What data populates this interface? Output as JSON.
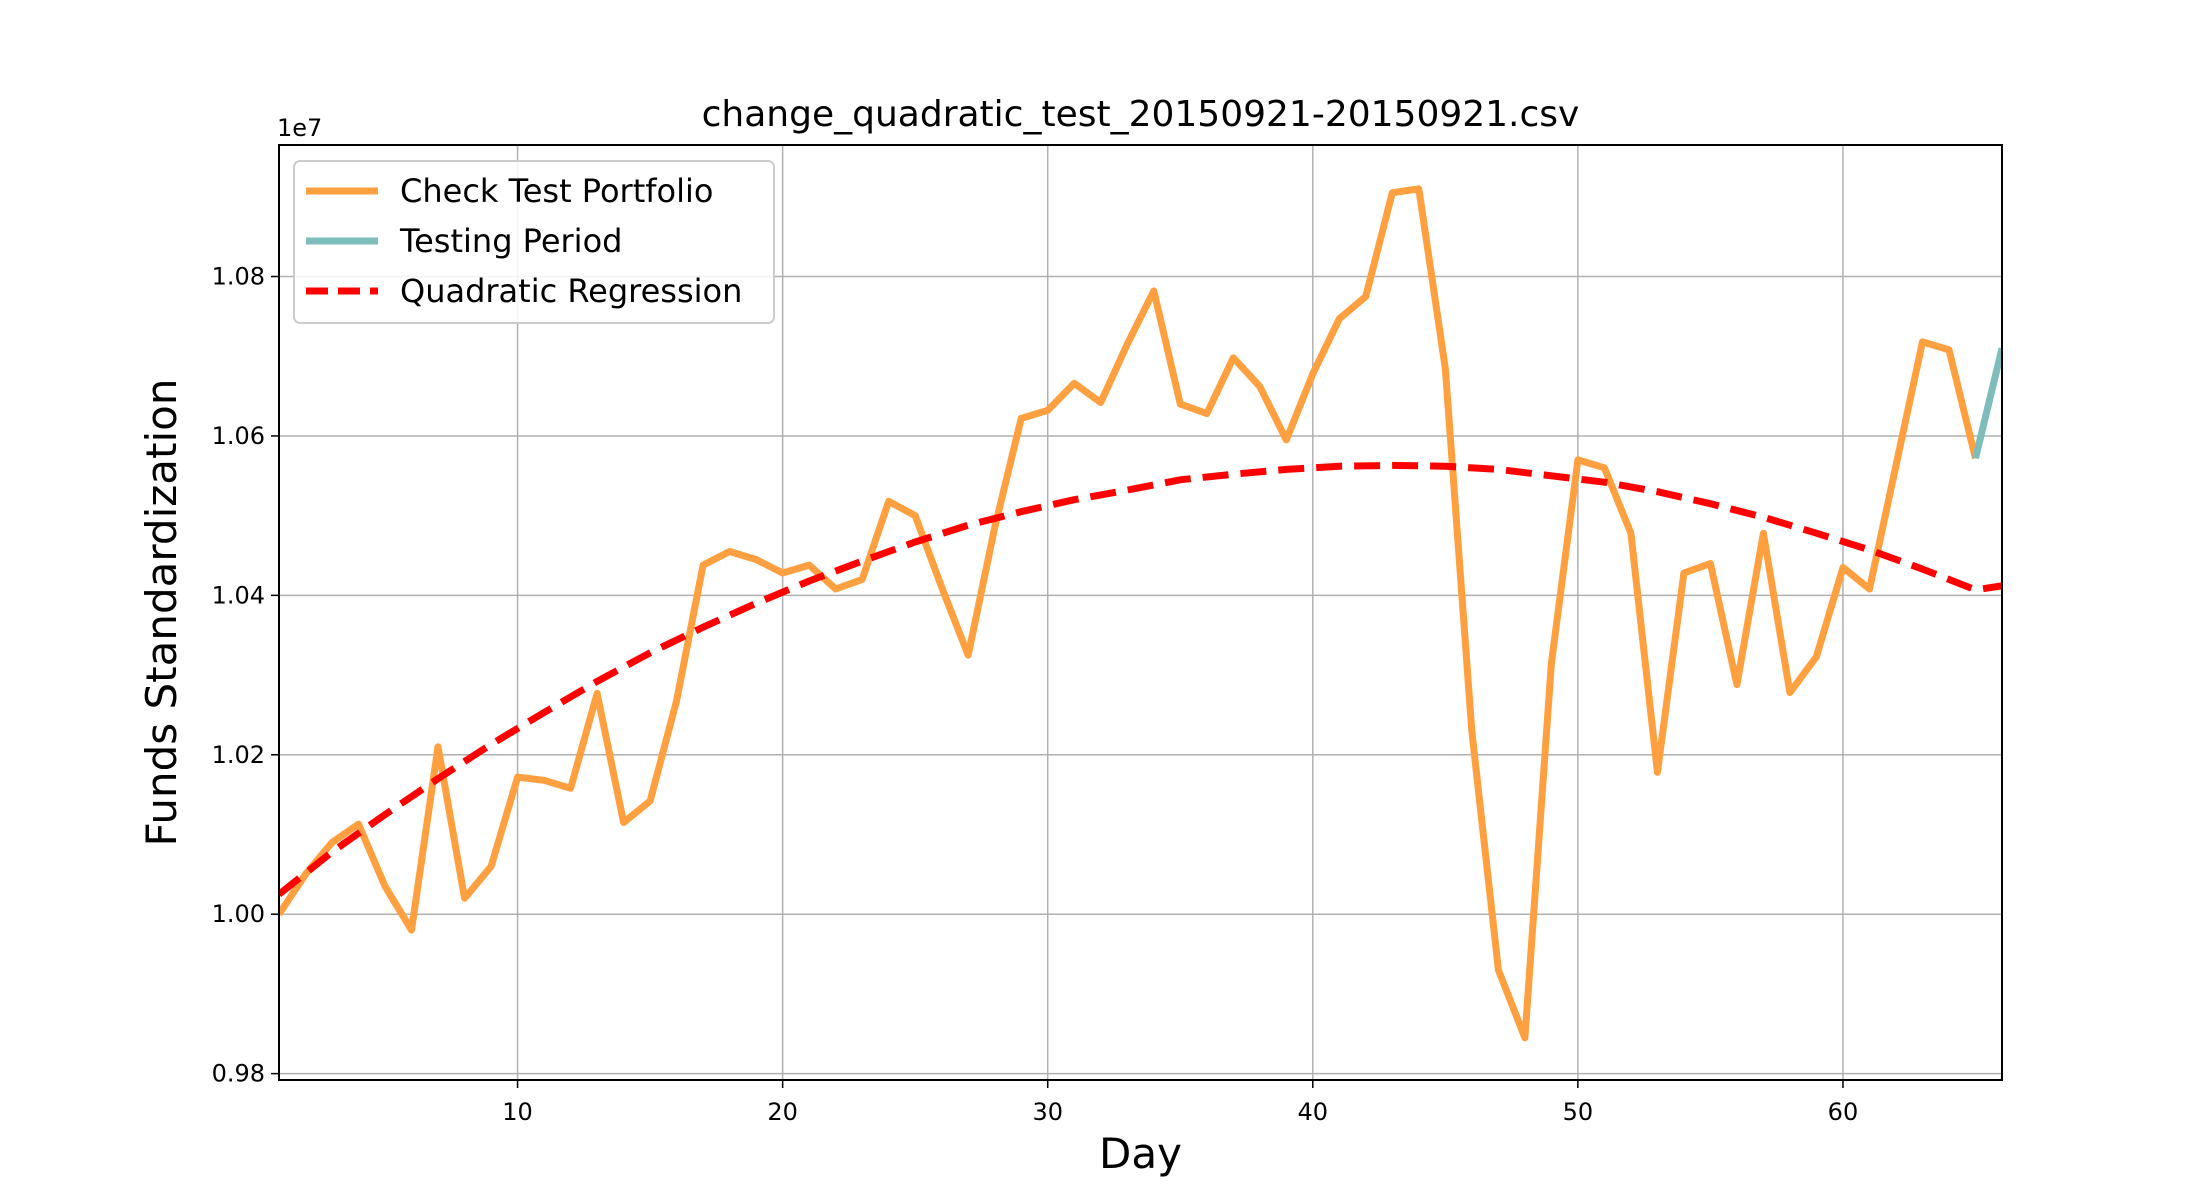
{
  "chart_data": {
    "type": "line",
    "title": "change_quadratic_test_20150921-20150921.csv",
    "xlabel": "Day",
    "ylabel": "Funds Standardization",
    "y_offset_label": "1e7",
    "xlim": [
      1,
      66
    ],
    "ylim": [
      0.9792,
      1.0965
    ],
    "x_ticks": [
      10,
      20,
      30,
      40,
      50,
      60
    ],
    "x_tick_labels": [
      "10",
      "20",
      "30",
      "40",
      "50",
      "60"
    ],
    "y_ticks": [
      0.98,
      1.0,
      1.02,
      1.04,
      1.06,
      1.08
    ],
    "y_tick_labels": [
      "0.98",
      "1.00",
      "1.02",
      "1.04",
      "1.06",
      "1.08"
    ],
    "grid": true,
    "legend_position": "upper-left",
    "series": [
      {
        "name": "Check Test Portfolio",
        "color": "#ffa040",
        "style": "solid",
        "x": [
          1,
          2,
          3,
          4,
          5,
          6,
          7,
          8,
          9,
          10,
          11,
          12,
          13,
          14,
          15,
          16,
          17,
          18,
          19,
          20,
          21,
          22,
          23,
          24,
          25,
          26,
          27,
          28,
          29,
          30,
          31,
          32,
          33,
          34,
          35,
          36,
          37,
          38,
          39,
          40,
          41,
          42,
          43,
          44,
          45,
          46,
          47,
          48,
          49,
          50,
          51,
          52,
          53,
          54,
          55,
          56,
          57,
          58,
          59,
          60,
          61,
          62,
          63,
          64,
          65
        ],
        "values": [
          1.0,
          1.005,
          1.009,
          1.0113,
          1.0035,
          0.998,
          1.021,
          1.002,
          1.006,
          1.0172,
          1.0168,
          1.0158,
          1.0277,
          1.0115,
          1.0142,
          1.0268,
          1.0438,
          1.0455,
          1.0445,
          1.0428,
          1.0438,
          1.0408,
          1.042,
          1.0518,
          1.05,
          1.041,
          1.0325,
          1.0485,
          1.0622,
          1.0632,
          1.0666,
          1.0642,
          1.0715,
          1.0782,
          1.064,
          1.0628,
          1.0698,
          1.0662,
          1.0595,
          1.0678,
          1.0747,
          1.0775,
          1.0905,
          1.091,
          1.0685,
          1.023,
          0.993,
          0.9845,
          1.0315,
          1.057,
          1.056,
          1.0478,
          1.0178,
          1.0428,
          1.044,
          1.0288,
          1.0478,
          1.0278,
          1.0323,
          1.0435,
          1.0408,
          1.0563,
          1.0718,
          1.0708,
          1.0572
        ]
      },
      {
        "name": "Testing Period",
        "color": "#7fbcbc",
        "style": "solid",
        "x": [
          65,
          66
        ],
        "values": [
          1.0572,
          1.071
        ]
      },
      {
        "name": "Quadratic Regression",
        "color": "#ff0000",
        "style": "dashed",
        "x": [
          1,
          3,
          5,
          7,
          9,
          11,
          13,
          15,
          17,
          19,
          21,
          23,
          25,
          27,
          29,
          31,
          33,
          35,
          37,
          39,
          41,
          43,
          45,
          47,
          49,
          51,
          53,
          55,
          57,
          59,
          61,
          63,
          65,
          66
        ],
        "values": [
          1.0025,
          1.0078,
          1.0125,
          1.017,
          1.0213,
          1.0253,
          1.0292,
          1.0328,
          1.036,
          1.039,
          1.0418,
          1.0443,
          1.0467,
          1.0488,
          1.0505,
          1.052,
          1.0532,
          1.0545,
          1.0552,
          1.0558,
          1.0562,
          1.0563,
          1.0562,
          1.0558,
          1.055,
          1.0542,
          1.053,
          1.0515,
          1.0498,
          1.0478,
          1.0457,
          1.0433,
          1.0407,
          1.0412
        ]
      }
    ]
  }
}
